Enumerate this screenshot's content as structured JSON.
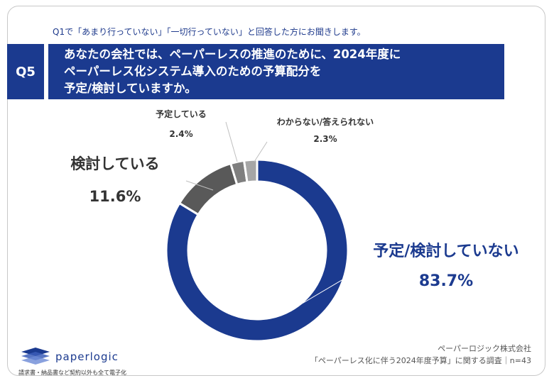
{
  "intro_text": "Q1で「あまり行っていない」「一切行っていない」と回答した方にお聞きします。",
  "question": {
    "number": "Q5",
    "lines": [
      "あなたの会社では、ペーパーレスの推進のために、2024年度に",
      "ペーパーレス化システム導入のための予算配分を",
      "予定/検討していますか。"
    ]
  },
  "chart_data": {
    "type": "pie",
    "donut": true,
    "slices": [
      {
        "label": "予定/検討していない",
        "value": 83.7,
        "value_label": "83.7%",
        "color": "#1b3a8f"
      },
      {
        "label": "検討している",
        "value": 11.6,
        "value_label": "11.6%",
        "color": "#595959"
      },
      {
        "label": "予定している",
        "value": 2.4,
        "value_label": "2.4%",
        "color": "#7f7f7f"
      },
      {
        "label": "わからない/答えられない",
        "value": 2.3,
        "value_label": "2.3%",
        "color": "#a6a6a6"
      }
    ]
  },
  "logo": {
    "name": "paperlogic",
    "tagline": "請求書・納品書など契約以外も全て電子化"
  },
  "source": {
    "company": "ペーパーロジック株式会社",
    "survey": "「ペーパーレス化に伴う2024年度予算」に関する調査｜n=43"
  }
}
